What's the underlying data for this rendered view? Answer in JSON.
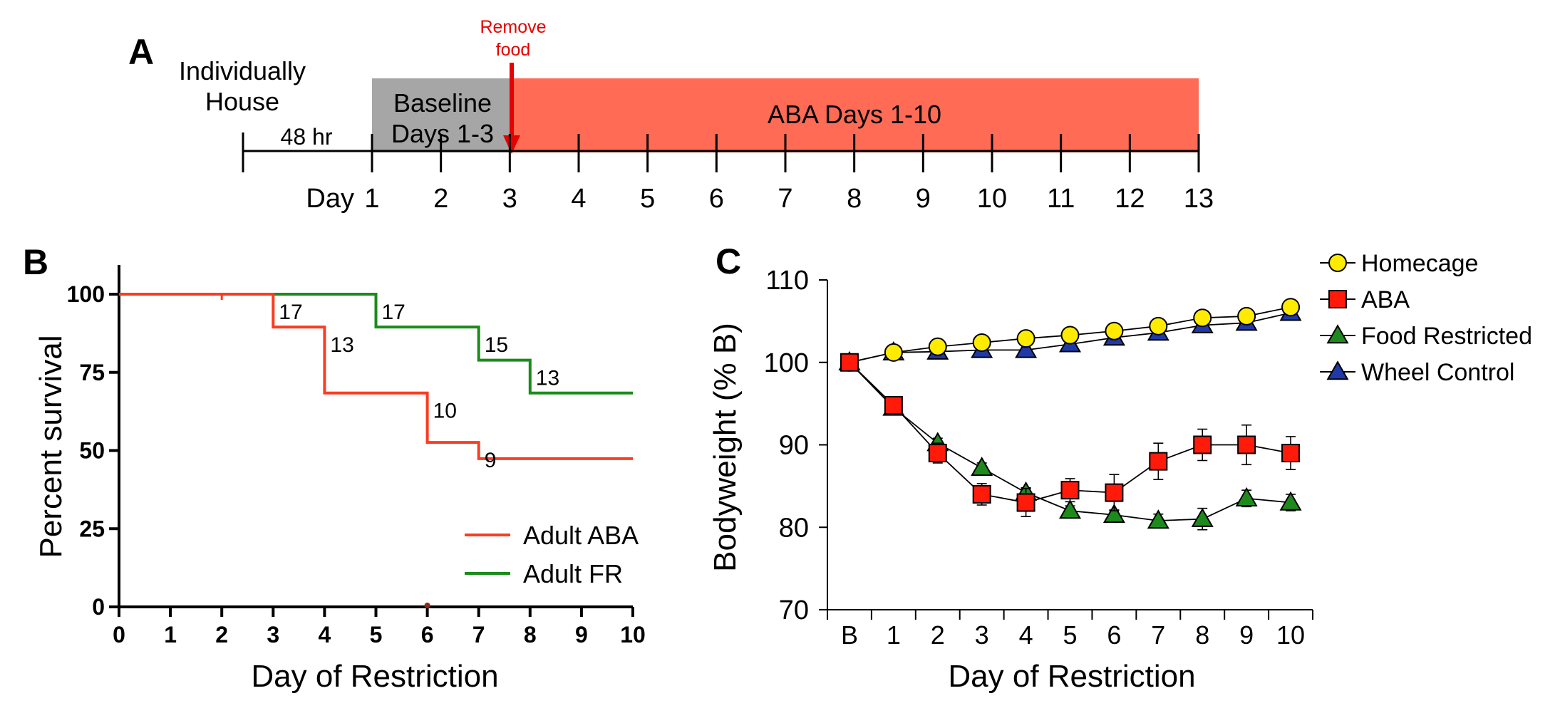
{
  "panel_a": {
    "panel_letter": "A",
    "house_label_1": "Individually",
    "house_label_2": "House",
    "gap_label": "48 hr",
    "baseline_label_1": "Baseline",
    "baseline_label_2": "Days 1-3",
    "remove_label_1": "Remove",
    "remove_label_2": "food",
    "aba_label": "ABA Days 1-10",
    "day_word": "Day",
    "days": [
      "1",
      "2",
      "3",
      "4",
      "5",
      "6",
      "7",
      "8",
      "9",
      "10",
      "11",
      "12",
      "13"
    ],
    "colors": {
      "baseline": "#a6a6a6",
      "aba": "#ff6b55",
      "aba_line": "#c0392b",
      "arrow": "#e60000"
    }
  },
  "chart_data": [
    {
      "panel_letter": "B",
      "type": "line",
      "step": true,
      "xlabel": "Day of Restriction",
      "ylabel": "Percent survival",
      "xlim": [
        0,
        10
      ],
      "ylim": [
        0,
        100
      ],
      "x_ticks": [
        0,
        1,
        2,
        3,
        4,
        5,
        6,
        7,
        8,
        9,
        10
      ],
      "y_ticks": [
        0,
        25,
        50,
        75,
        100
      ],
      "legend_position": "bottom-right",
      "series": [
        {
          "name": "Adult ABA",
          "color": "#ff3b1f",
          "steps": [
            [
              0,
              100
            ],
            [
              3,
              89.5
            ],
            [
              4,
              68.4
            ],
            [
              6,
              52.6
            ],
            [
              7,
              47.4
            ],
            [
              10,
              47.4
            ]
          ],
          "labels": [
            {
              "x": 3,
              "y": 100,
              "text": "17"
            },
            {
              "x": 4,
              "y": 89.5,
              "text": "13"
            },
            {
              "x": 6,
              "y": 68.4,
              "text": "10"
            },
            {
              "x": 7,
              "y": 52.6,
              "text": "9"
            }
          ]
        },
        {
          "name": "Adult FR",
          "color": "#1a8c1a",
          "steps": [
            [
              0,
              100
            ],
            [
              5,
              89.5
            ],
            [
              7,
              78.9
            ],
            [
              8,
              68.4
            ],
            [
              10,
              68.4
            ]
          ],
          "labels": [
            {
              "x": 5,
              "y": 100,
              "text": "17"
            },
            {
              "x": 7,
              "y": 89.5,
              "text": "15"
            },
            {
              "x": 8,
              "y": 78.9,
              "text": "13"
            }
          ]
        }
      ]
    },
    {
      "panel_letter": "C",
      "type": "line",
      "xlabel": "Day of Restriction",
      "ylabel": "Bodyweight (% B)",
      "categories": [
        "B",
        "1",
        "2",
        "3",
        "4",
        "5",
        "6",
        "7",
        "8",
        "9",
        "10"
      ],
      "ylim": [
        70,
        110
      ],
      "y_ticks": [
        70,
        80,
        90,
        100,
        110
      ],
      "legend_position": "top-right",
      "series": [
        {
          "name": "Wheel Control",
          "color": "#1f3aa8",
          "marker": "triangle",
          "values": [
            100,
            101.2,
            101.3,
            101.5,
            101.5,
            102.2,
            103.0,
            103.6,
            104.5,
            104.8,
            106.0
          ],
          "errors": [
            0,
            0,
            0,
            0,
            0,
            0,
            0,
            0,
            0,
            0,
            0
          ]
        },
        {
          "name": "Homecage",
          "color": "#ffeb00",
          "marker": "circle",
          "values": [
            100,
            101.2,
            101.9,
            102.4,
            102.9,
            103.3,
            103.8,
            104.4,
            105.4,
            105.6,
            106.7
          ],
          "errors": [
            0,
            0,
            0,
            0,
            0,
            0,
            0,
            0,
            0,
            0,
            0
          ]
        },
        {
          "name": "Food Restricted",
          "color": "#1e8a1e",
          "marker": "triangle",
          "values": [
            100,
            94.5,
            90.2,
            87.2,
            84.2,
            82.0,
            81.5,
            80.8,
            81.0,
            83.5,
            83.0
          ],
          "errors": [
            0,
            0.5,
            0.6,
            0.6,
            0.6,
            0.6,
            0.6,
            0.8,
            1.3,
            1.0,
            1.0
          ]
        },
        {
          "name": "ABA",
          "color": "#ff1a0a",
          "marker": "square",
          "values": [
            100,
            94.8,
            89.0,
            84.0,
            83.0,
            84.5,
            84.2,
            88.0,
            90.0,
            90.0,
            89.0
          ],
          "errors": [
            0,
            0.5,
            1.2,
            1.3,
            1.7,
            1.4,
            2.2,
            2.2,
            1.9,
            2.4,
            2.0
          ]
        }
      ],
      "legend_order": [
        "Homecage",
        "ABA",
        "Food Restricted",
        "Wheel Control"
      ]
    }
  ]
}
